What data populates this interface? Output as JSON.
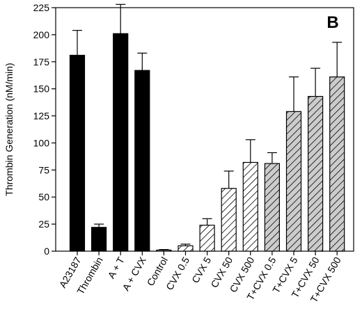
{
  "chart_data": {
    "type": "bar",
    "panel_label": "B",
    "ylabel": "Thrombin Generation (nM/min)",
    "xlabel": "",
    "ylim": [
      0,
      225
    ],
    "yticks": [
      0,
      25,
      50,
      75,
      100,
      125,
      150,
      175,
      200,
      225
    ],
    "grid": false,
    "legend": "none",
    "categories": [
      "A23187",
      "Thrombin",
      "A + T",
      "A + CVX",
      "Control",
      "CVX 0.5",
      "CVX 5",
      "CVX 50",
      "CVX 500",
      "T+CVX 0.5",
      "T+CVX 5",
      "T+CVX 50",
      "T+CVX 500"
    ],
    "values": [
      181,
      22,
      201,
      167,
      1,
      5,
      24,
      58,
      82,
      81,
      129,
      143,
      161
    ],
    "errors": [
      23,
      3,
      27,
      16,
      0.5,
      1.5,
      6,
      16,
      21,
      10,
      32,
      26,
      32
    ],
    "fill_style": [
      "solid",
      "solid",
      "solid",
      "solid",
      "hatch-white",
      "hatch-white",
      "hatch-white",
      "hatch-white",
      "hatch-white",
      "hatch-gray",
      "hatch-gray",
      "hatch-gray",
      "hatch-gray"
    ],
    "colors": {
      "solid": "#000000",
      "hatch_white_bg": "#ffffff",
      "hatch_gray_bg": "#cccccc",
      "stroke": "#000000"
    }
  }
}
